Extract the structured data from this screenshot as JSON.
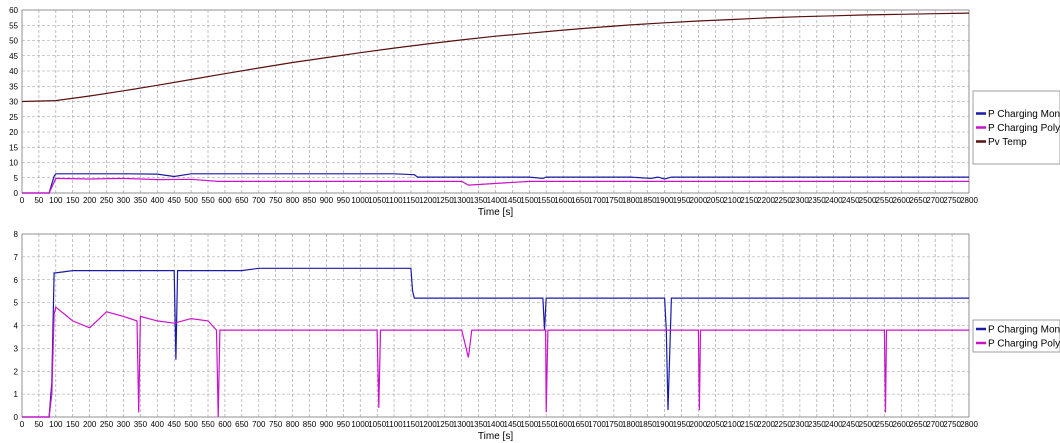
{
  "chart_data": [
    {
      "type": "line",
      "xlabel": "Time [s]",
      "ylabel": "",
      "xlim": [
        0,
        2800
      ],
      "ylim": [
        0,
        60
      ],
      "x_ticks": [
        0,
        50,
        100,
        150,
        200,
        250,
        300,
        350,
        400,
        450,
        500,
        550,
        600,
        650,
        700,
        750,
        800,
        850,
        900,
        950,
        1000,
        1050,
        1100,
        1150,
        1200,
        1250,
        1300,
        1350,
        1400,
        1450,
        1500,
        1550,
        1600,
        1650,
        1700,
        1750,
        1800,
        1850,
        1900,
        1950,
        2000,
        2050,
        2100,
        2150,
        2200,
        2250,
        2300,
        2350,
        2400,
        2450,
        2500,
        2550,
        2600,
        2650,
        2700,
        2750,
        2800
      ],
      "y_ticks": [
        0,
        5,
        10,
        15,
        20,
        25,
        30,
        35,
        40,
        45,
        50,
        55,
        60
      ],
      "grid": true,
      "legend": "right",
      "series": [
        {
          "name": "P Charging Mono",
          "color": "#1a1aa8",
          "x": [
            0,
            80,
            95,
            100,
            200,
            300,
            400,
            450,
            500,
            600,
            700,
            800,
            900,
            1000,
            1100,
            1160,
            1170,
            1300,
            1400,
            1500,
            1540,
            1550,
            1600,
            1700,
            1800,
            1860,
            1880,
            1900,
            1920,
            2000,
            2200,
            2400,
            2600,
            2800
          ],
          "y": [
            0,
            0,
            5.5,
            6.3,
            6.3,
            6.3,
            6.2,
            5.4,
            6.3,
            6.3,
            6.3,
            6.3,
            6.3,
            6.3,
            6.3,
            6.0,
            5.2,
            5.2,
            5.2,
            5.2,
            4.8,
            5.2,
            5.2,
            5.2,
            5.2,
            4.8,
            5.2,
            4.6,
            5.2,
            5.2,
            5.2,
            5.2,
            5.2,
            5.2
          ]
        },
        {
          "name": "P Charging Poly",
          "color": "#cc11cc",
          "x": [
            0,
            80,
            95,
            100,
            200,
            300,
            400,
            500,
            580,
            600,
            800,
            1000,
            1050,
            1300,
            1320,
            1500,
            1550,
            2000,
            2200,
            2500,
            2800
          ],
          "y": [
            0,
            0,
            3.5,
            4.8,
            4.6,
            4.8,
            4.4,
            4.5,
            3.8,
            3.8,
            3.8,
            3.8,
            3.8,
            3.8,
            2.6,
            3.8,
            3.8,
            3.8,
            3.8,
            3.8,
            3.8
          ]
        },
        {
          "name": "Pv Temp",
          "color": "#5a1010",
          "x": [
            0,
            100,
            200,
            300,
            400,
            500,
            600,
            700,
            800,
            900,
            1000,
            1100,
            1200,
            1300,
            1400,
            1500,
            1600,
            1700,
            1800,
            1900,
            2000,
            2100,
            2200,
            2300,
            2400,
            2500,
            2600,
            2700,
            2800
          ],
          "y": [
            30,
            30.3,
            31.8,
            33.5,
            35.3,
            37.2,
            39.1,
            41,
            42.8,
            44.4,
            46,
            47.5,
            48.9,
            50.2,
            51.4,
            52.4,
            53.4,
            54.3,
            55.1,
            55.8,
            56.4,
            56.9,
            57.4,
            57.8,
            58.1,
            58.4,
            58.6,
            58.8,
            59
          ]
        }
      ]
    },
    {
      "type": "line",
      "xlabel": "Time [s]",
      "ylabel": "",
      "xlim": [
        0,
        2800
      ],
      "ylim": [
        0,
        8
      ],
      "x_ticks": [
        0,
        50,
        100,
        150,
        200,
        250,
        300,
        350,
        400,
        450,
        500,
        550,
        600,
        650,
        700,
        750,
        800,
        850,
        900,
        950,
        1000,
        1050,
        1100,
        1150,
        1200,
        1250,
        1300,
        1350,
        1400,
        1450,
        1500,
        1550,
        1600,
        1650,
        1700,
        1750,
        1800,
        1850,
        1900,
        1950,
        2000,
        2050,
        2100,
        2150,
        2200,
        2250,
        2300,
        2350,
        2400,
        2450,
        2500,
        2550,
        2600,
        2650,
        2700,
        2750,
        2800
      ],
      "y_ticks": [
        0,
        1,
        2,
        3,
        4,
        5,
        6,
        7,
        8
      ],
      "grid": true,
      "legend": "right",
      "series": [
        {
          "name": "P Charging Mono",
          "color": "#1a1aa8",
          "x": [
            0,
            80,
            88,
            95,
            100,
            150,
            200,
            250,
            300,
            350,
            400,
            450,
            455,
            460,
            500,
            550,
            600,
            650,
            700,
            750,
            800,
            850,
            900,
            950,
            1000,
            1050,
            1100,
            1150,
            1155,
            1160,
            1200,
            1250,
            1300,
            1350,
            1400,
            1450,
            1500,
            1540,
            1545,
            1550,
            1600,
            1650,
            1700,
            1750,
            1800,
            1850,
            1900,
            1905,
            1910,
            1920,
            2000,
            2200,
            2400,
            2600,
            2800
          ],
          "y": [
            0,
            0,
            1.5,
            6.3,
            6.3,
            6.4,
            6.4,
            6.4,
            6.4,
            6.4,
            6.4,
            6.4,
            2.5,
            6.4,
            6.4,
            6.4,
            6.4,
            6.4,
            6.5,
            6.5,
            6.5,
            6.5,
            6.5,
            6.5,
            6.5,
            6.5,
            6.5,
            6.5,
            5.5,
            5.2,
            5.2,
            5.2,
            5.2,
            5.2,
            5.2,
            5.2,
            5.2,
            5.2,
            3.8,
            5.2,
            5.2,
            5.2,
            5.2,
            5.2,
            5.2,
            5.2,
            5.2,
            3.8,
            0.3,
            5.2,
            5.2,
            5.2,
            5.2,
            5.2,
            5.2
          ]
        },
        {
          "name": "P Charging Poly",
          "color": "#cc11cc",
          "x": [
            0,
            80,
            88,
            95,
            100,
            150,
            200,
            250,
            300,
            340,
            345,
            350,
            400,
            450,
            500,
            550,
            575,
            580,
            585,
            600,
            800,
            1000,
            1050,
            1055,
            1060,
            1300,
            1320,
            1330,
            1500,
            1548,
            1550,
            1555,
            1560,
            2000,
            2003,
            2006,
            2200,
            2500,
            2550,
            2553,
            2556,
            2800
          ],
          "y": [
            0,
            0,
            1,
            4.5,
            4.8,
            4.2,
            3.9,
            4.6,
            4.4,
            4.2,
            0.2,
            4.4,
            4.2,
            4.1,
            4.3,
            4.2,
            3.8,
            0,
            3.8,
            3.8,
            3.8,
            3.8,
            3.8,
            0.4,
            3.8,
            3.8,
            2.6,
            3.8,
            3.8,
            3.8,
            0.2,
            3.8,
            3.8,
            3.8,
            0.3,
            3.8,
            3.8,
            3.8,
            3.8,
            0.2,
            3.8,
            3.8
          ]
        }
      ]
    }
  ]
}
